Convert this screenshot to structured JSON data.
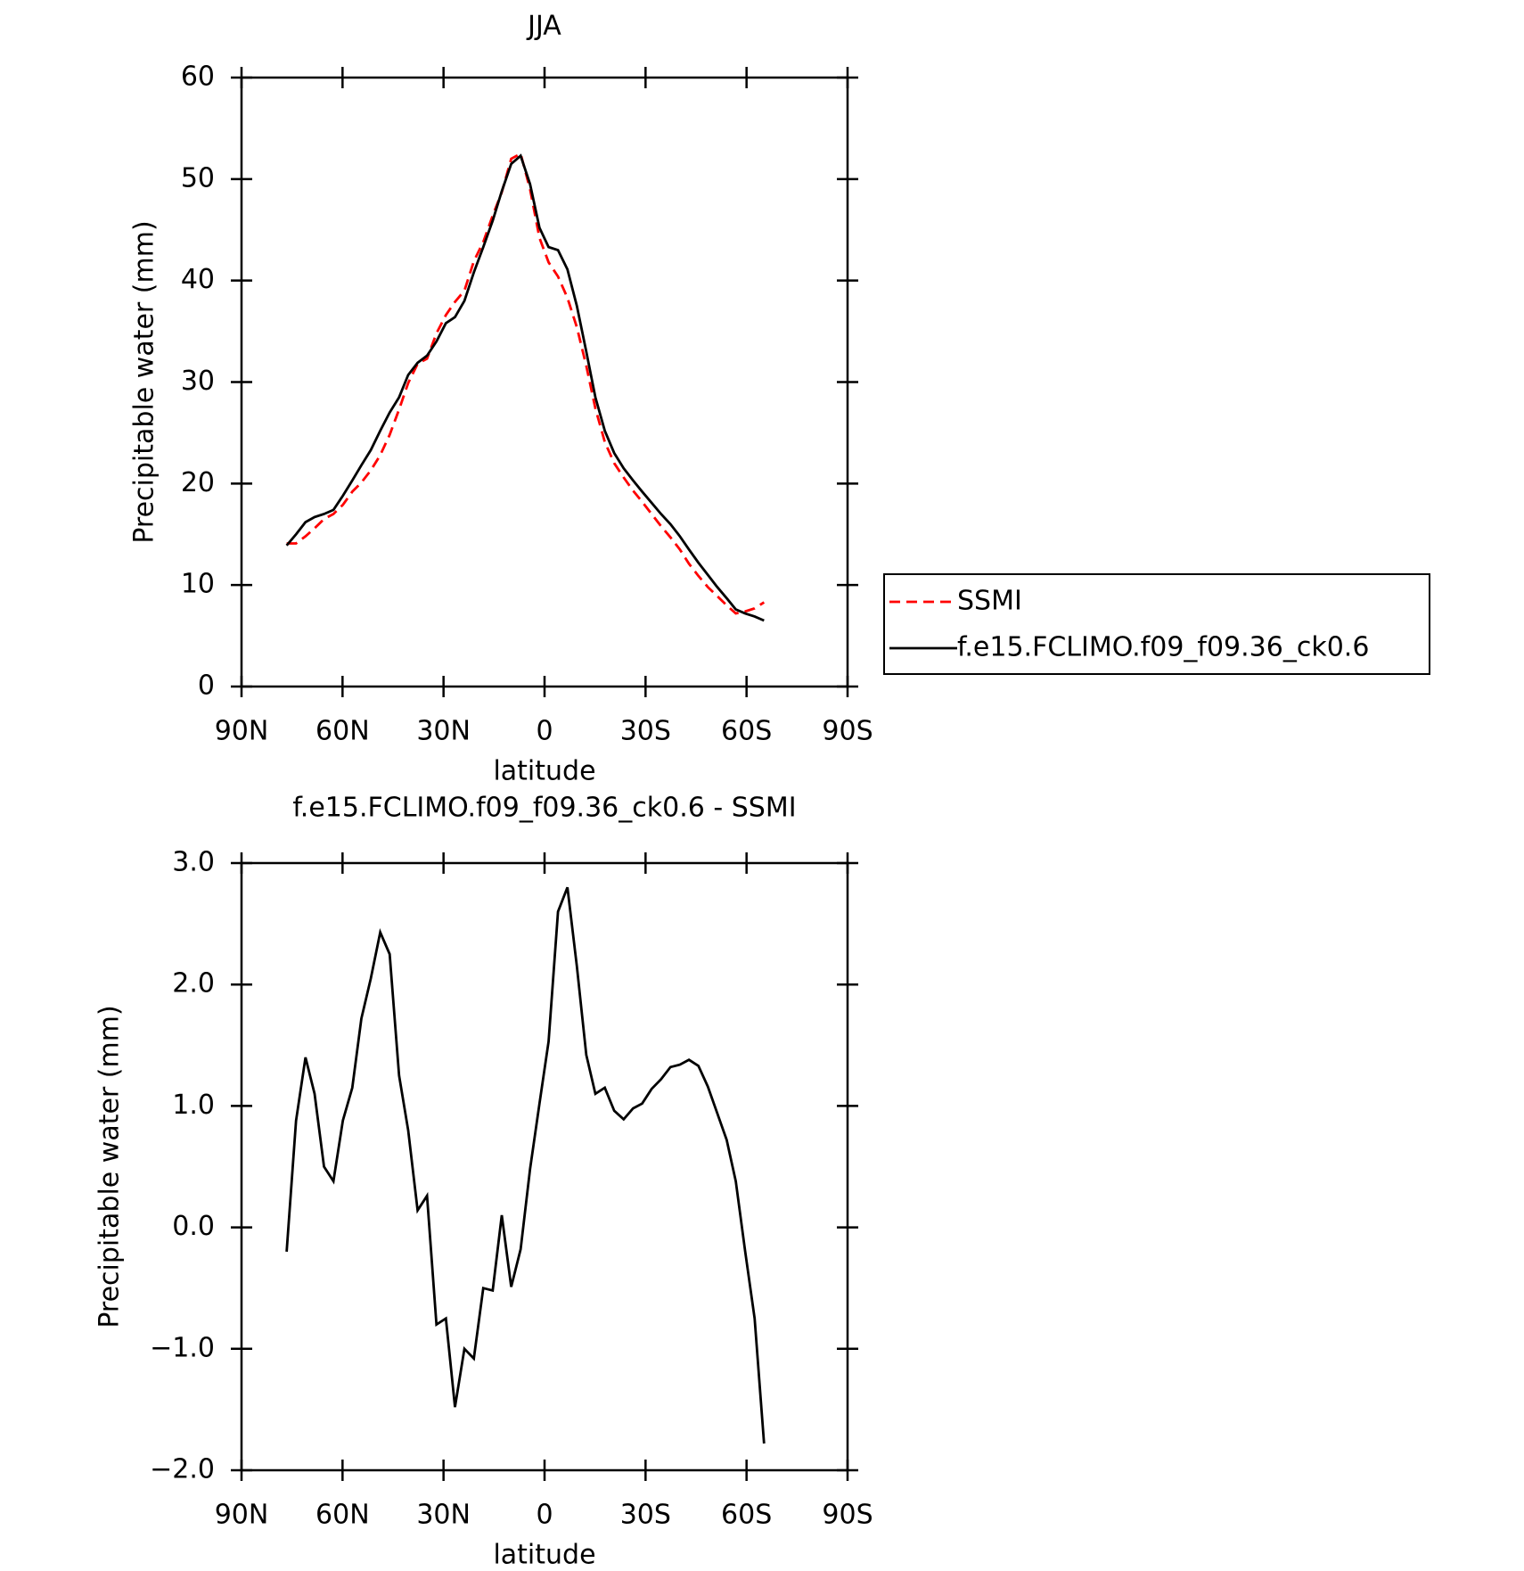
{
  "chart_data": [
    {
      "type": "line",
      "title": "JJA",
      "xlabel": "latitude",
      "ylabel": "Precipitable water (mm)",
      "x": [
        76.6,
        73.8,
        71.0,
        68.3,
        65.5,
        62.7,
        59.9,
        57.1,
        54.4,
        51.6,
        48.8,
        46.0,
        43.2,
        40.5,
        37.7,
        34.9,
        32.1,
        29.3,
        26.6,
        23.8,
        21.0,
        18.2,
        15.4,
        12.7,
        9.9,
        7.1,
        4.3,
        1.5,
        -1.2,
        -4.0,
        -6.8,
        -9.6,
        -12.4,
        -15.1,
        -17.9,
        -20.7,
        -23.5,
        -26.3,
        -29.0,
        -31.8,
        -34.6,
        -37.4,
        -40.2,
        -42.9,
        -45.7,
        -48.5,
        -51.3,
        -54.1,
        -56.8,
        -59.6,
        -62.4,
        -65.2
      ],
      "series": [
        {
          "name": "SSMI",
          "color": "#ff0000",
          "dash": true,
          "values": [
            14.1,
            14.1,
            14.8,
            15.6,
            16.5,
            17.0,
            17.9,
            19.2,
            20.1,
            21.3,
            22.8,
            24.8,
            27.3,
            29.9,
            31.8,
            32.3,
            34.8,
            36.6,
            37.9,
            39.0,
            41.9,
            43.8,
            46.4,
            48.7,
            52.0,
            52.5,
            49.0,
            44.2,
            41.8,
            40.4,
            38.3,
            35.4,
            31.6,
            27.4,
            24.1,
            22.0,
            20.6,
            19.3,
            18.2,
            17.0,
            15.8,
            14.7,
            13.5,
            12.1,
            10.9,
            9.8,
            8.9,
            8.0,
            7.2,
            7.4,
            7.7,
            8.3
          ]
        },
        {
          "name": "f.e15.FCLIMO.f09_f09.36_ck0.6",
          "color": "#000000",
          "dash": false,
          "values": [
            13.9,
            15.0,
            16.2,
            16.7,
            17.0,
            17.4,
            18.8,
            20.3,
            21.8,
            23.3,
            25.2,
            27.0,
            28.5,
            30.7,
            31.9,
            32.6,
            34.0,
            35.8,
            36.4,
            38.0,
            40.8,
            43.3,
            45.9,
            48.8,
            51.5,
            52.3,
            49.5,
            45.2,
            43.3,
            43.0,
            41.1,
            37.5,
            33.0,
            28.5,
            25.2,
            23.0,
            21.5,
            20.3,
            19.2,
            18.1,
            17.0,
            16.0,
            14.8,
            13.5,
            12.2,
            11.0,
            9.8,
            8.7,
            7.6,
            7.2,
            6.9,
            6.5
          ]
        }
      ],
      "xlim": [
        90,
        -90
      ],
      "xticks": [
        {
          "value": 90,
          "label": "90N"
        },
        {
          "value": 60,
          "label": "60N"
        },
        {
          "value": 30,
          "label": "30N"
        },
        0,
        {
          "value": -30,
          "label": "30S"
        },
        {
          "value": -60,
          "label": "60S"
        },
        {
          "value": -90,
          "label": "90S"
        }
      ],
      "ylim": [
        0,
        60
      ],
      "yticks": [
        0,
        10,
        20,
        30,
        40,
        50,
        60
      ],
      "legend": "right"
    },
    {
      "type": "line",
      "title": "f.e15.FCLIMO.f09_f09.36_ck0.6 - SSMI",
      "xlabel": "latitude",
      "ylabel": "Precipitable water (mm)",
      "x": [
        76.6,
        73.8,
        71.0,
        68.3,
        65.5,
        62.7,
        59.9,
        57.1,
        54.4,
        51.6,
        48.8,
        46.0,
        43.2,
        40.5,
        37.7,
        34.9,
        32.1,
        29.3,
        26.6,
        23.8,
        21.0,
        18.2,
        15.4,
        12.7,
        9.9,
        7.1,
        4.3,
        1.5,
        -1.2,
        -4.0,
        -6.8,
        -9.6,
        -12.4,
        -15.1,
        -17.9,
        -20.7,
        -23.5,
        -26.3,
        -29.0,
        -31.8,
        -34.6,
        -37.4,
        -40.2,
        -42.9,
        -45.7,
        -48.5,
        -51.3,
        -54.1,
        -56.8,
        -59.6,
        -62.4,
        -65.2
      ],
      "series": [
        {
          "color": "#000000",
          "dash": false,
          "values": [
            -0.2,
            0.88,
            1.4,
            1.1,
            0.5,
            0.38,
            0.88,
            1.15,
            1.72,
            2.05,
            2.43,
            2.25,
            1.25,
            0.8,
            0.14,
            0.26,
            -0.8,
            -0.75,
            -1.48,
            -1.0,
            -1.08,
            -0.5,
            -0.52,
            0.1,
            -0.49,
            -0.18,
            0.48,
            1.02,
            1.53,
            2.6,
            2.8,
            2.15,
            1.42,
            1.1,
            1.15,
            0.96,
            0.89,
            0.98,
            1.02,
            1.14,
            1.22,
            1.32,
            1.34,
            1.38,
            1.33,
            1.16,
            0.94,
            0.72,
            0.38,
            -0.2,
            -0.75,
            -1.78
          ]
        }
      ],
      "xlim": [
        90,
        -90
      ],
      "xticks": [
        {
          "value": 90,
          "label": "90N"
        },
        {
          "value": 60,
          "label": "60N"
        },
        {
          "value": 30,
          "label": "30N"
        },
        0,
        {
          "value": -30,
          "label": "30S"
        },
        {
          "value": -60,
          "label": "60S"
        },
        {
          "value": -90,
          "label": "90S"
        }
      ],
      "ylim": [
        -2,
        3
      ],
      "yticks": [
        {
          "value": -2,
          "label": "−2.0"
        },
        {
          "value": -1,
          "label": "−1.0"
        },
        {
          "value": 0,
          "label": "0.0"
        },
        {
          "value": 1,
          "label": "1.0"
        },
        {
          "value": 2,
          "label": "2.0"
        },
        {
          "value": 3,
          "label": "3.0"
        }
      ]
    }
  ]
}
